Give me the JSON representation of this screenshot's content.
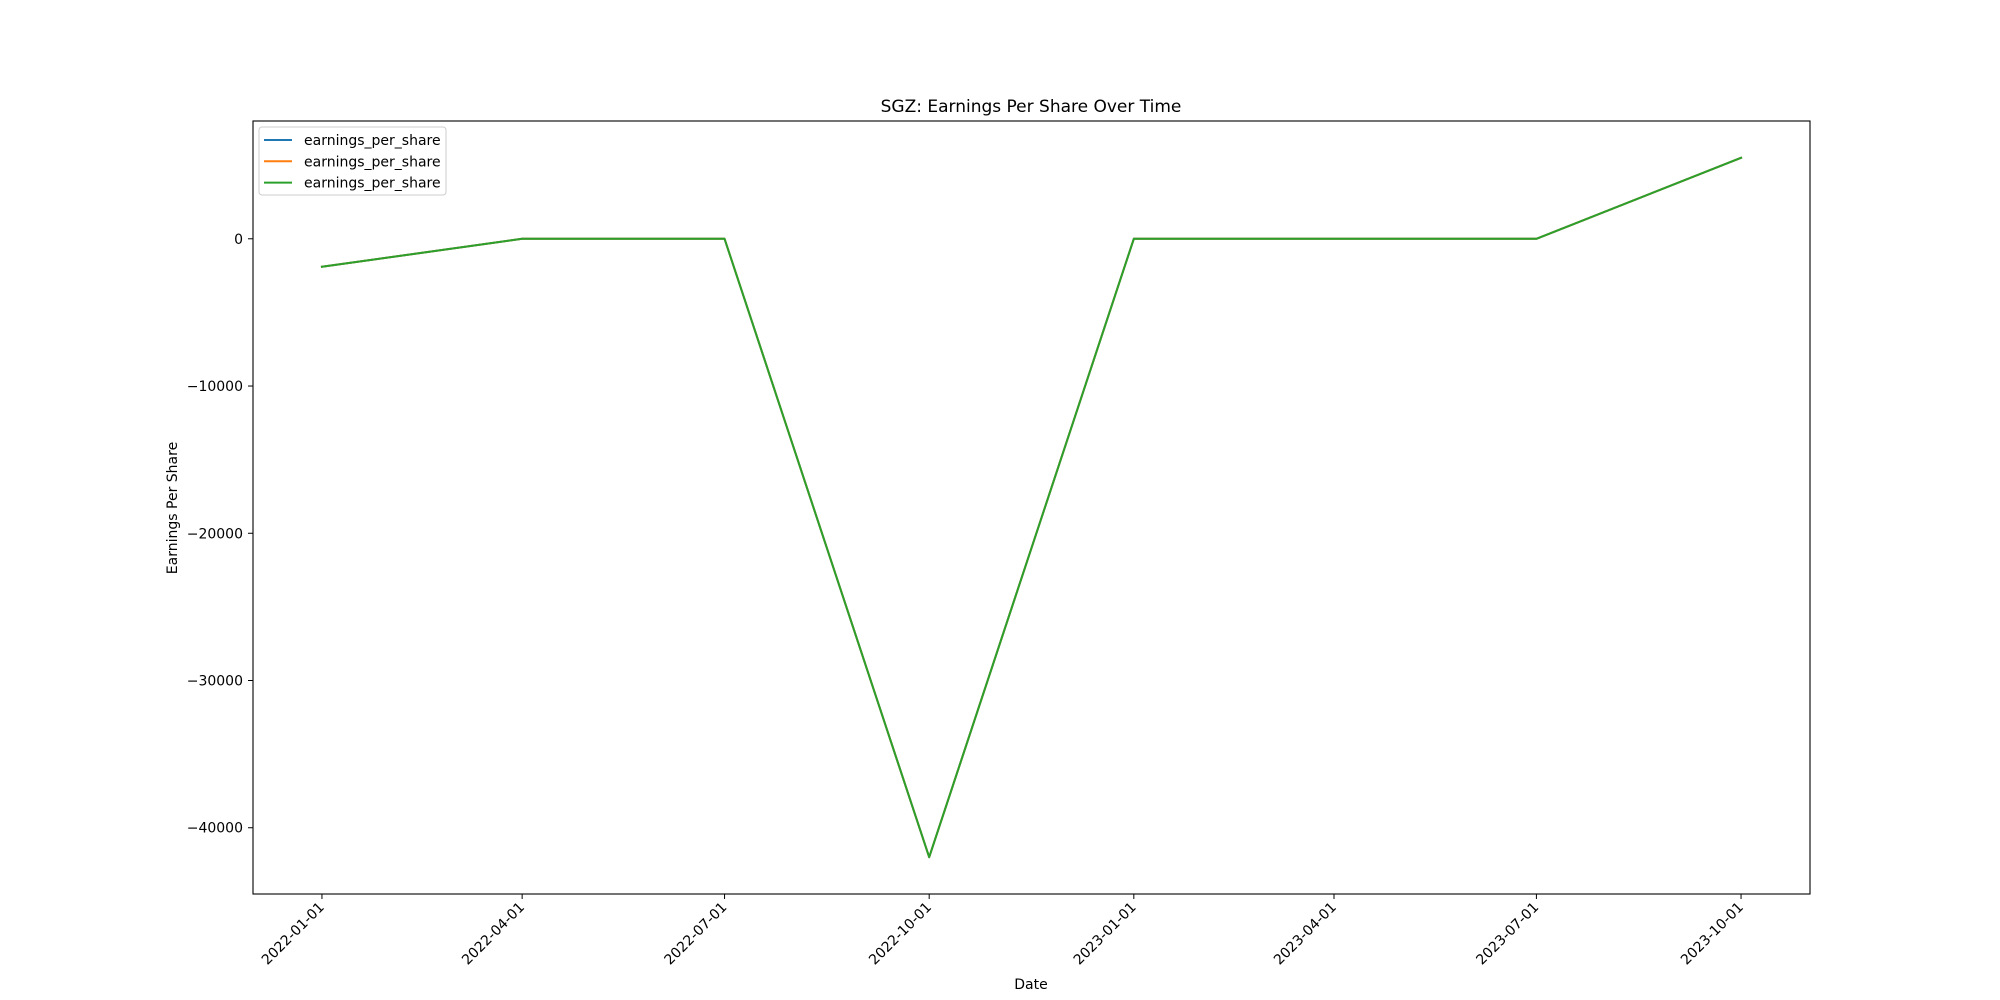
{
  "chart_data": {
    "type": "line",
    "title": "SGZ: Earnings Per Share Over Time",
    "xlabel": "Date",
    "ylabel": "Earnings Per Share",
    "x": [
      "2022-01-01",
      "2022-04-01",
      "2022-07-01",
      "2022-10-01",
      "2023-01-01",
      "2023-04-01",
      "2023-07-01",
      "2023-10-01"
    ],
    "series": [
      {
        "name": "earnings_per_share",
        "color": "#1f77b4",
        "points": [
          {
            "x": "2022-01-01",
            "y": -1900
          },
          {
            "x": "2022-04-01",
            "y": 0
          },
          {
            "x": "2022-07-01",
            "y": 0
          },
          {
            "x": "2022-10-01",
            "y": -42000
          },
          {
            "x": "2023-01-01",
            "y": 0
          },
          {
            "x": "2023-07-01",
            "y": 0
          },
          {
            "x": "2023-10-01",
            "y": 5500
          }
        ]
      },
      {
        "name": "earnings_per_share",
        "color": "#ff7f0e",
        "points": [
          {
            "x": "2022-01-01",
            "y": -1900
          },
          {
            "x": "2022-04-01",
            "y": 0
          },
          {
            "x": "2022-07-01",
            "y": 0
          },
          {
            "x": "2022-10-01",
            "y": -42000
          },
          {
            "x": "2023-01-01",
            "y": 0
          },
          {
            "x": "2023-07-01",
            "y": 0
          },
          {
            "x": "2023-10-01",
            "y": 5500
          }
        ]
      },
      {
        "name": "earnings_per_share",
        "color": "#2ca02c",
        "points": [
          {
            "x": "2022-01-01",
            "y": -1900
          },
          {
            "x": "2022-04-01",
            "y": 0
          },
          {
            "x": "2022-07-01",
            "y": 0
          },
          {
            "x": "2022-10-01",
            "y": -42000
          },
          {
            "x": "2023-01-01",
            "y": 0
          },
          {
            "x": "2023-07-01",
            "y": 0
          },
          {
            "x": "2023-10-01",
            "y": 5500
          }
        ]
      }
    ],
    "yticks": [
      0,
      -10000,
      -20000,
      -30000,
      -40000
    ],
    "ytick_labels": [
      "0",
      "−10000",
      "−20000",
      "−30000",
      "−40000"
    ],
    "xlim": [
      "2021-12-01",
      "2023-11-01"
    ],
    "ylim": [
      -44500,
      8000
    ],
    "grid": false,
    "legend_position": "top-left"
  }
}
